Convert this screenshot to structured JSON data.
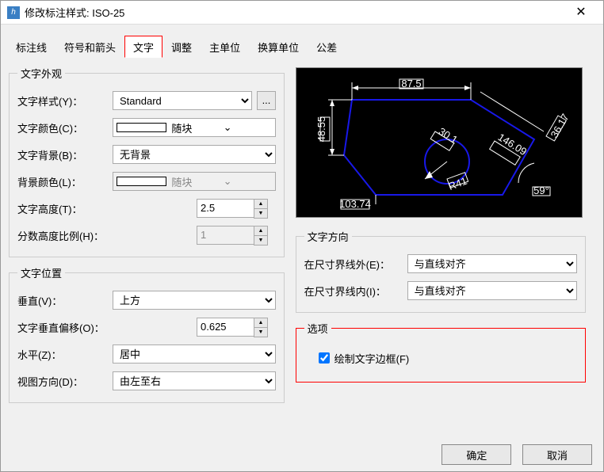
{
  "window": {
    "title": "修改标注样式: ISO-25"
  },
  "tabs": {
    "items": [
      "标注线",
      "符号和箭头",
      "文字",
      "调整",
      "主单位",
      "换算单位",
      "公差"
    ],
    "active_index": 2
  },
  "appearance": {
    "legend": "文字外观",
    "style_label": "文字样式(Y)：",
    "style_value": "Standard",
    "color_label": "文字颜色(C)：",
    "color_value": "随块",
    "bg_label": "文字背景(B)：",
    "bg_value": "无背景",
    "bgcolor_label": "背景颜色(L)：",
    "bgcolor_value": "随块",
    "bgcolor_disabled": true,
    "height_label": "文字高度(T)：",
    "height_value": "2.5",
    "fraction_label": "分数高度比例(H)：",
    "fraction_value": "1",
    "fraction_disabled": true
  },
  "position": {
    "legend": "文字位置",
    "vert_label": "垂直(V)：",
    "vert_value": "上方",
    "offset_label": "文字垂直偏移(O)：",
    "offset_value": "0.625",
    "horiz_label": "水平(Z)：",
    "horiz_value": "居中",
    "viewdir_label": "视图方向(D)：",
    "viewdir_value": "由左至右"
  },
  "orientation": {
    "legend": "文字方向",
    "outside_label": "在尺寸界线外(E)：",
    "outside_value": "与直线对齐",
    "inside_label": "在尺寸界线内(I)：",
    "inside_value": "与直线对齐"
  },
  "options": {
    "legend": "选项",
    "draw_frame_label": "绘制文字边框(F)",
    "draw_frame_checked": true
  },
  "buttons": {
    "ok": "确定",
    "cancel": "取消"
  },
  "preview": {
    "dim1": "87.5",
    "dim2": "48.55",
    "dim3": "103.74",
    "dim4": "30.1",
    "dim5": "146.09",
    "dim6": "R41",
    "dim7": "59°",
    "dim8": "36.17",
    "colors": {
      "bg": "#000000",
      "shape": "#1818e8",
      "dim": "#ffffff",
      "text_fill": "#000000",
      "text_box_fill": "#ffffff"
    }
  }
}
